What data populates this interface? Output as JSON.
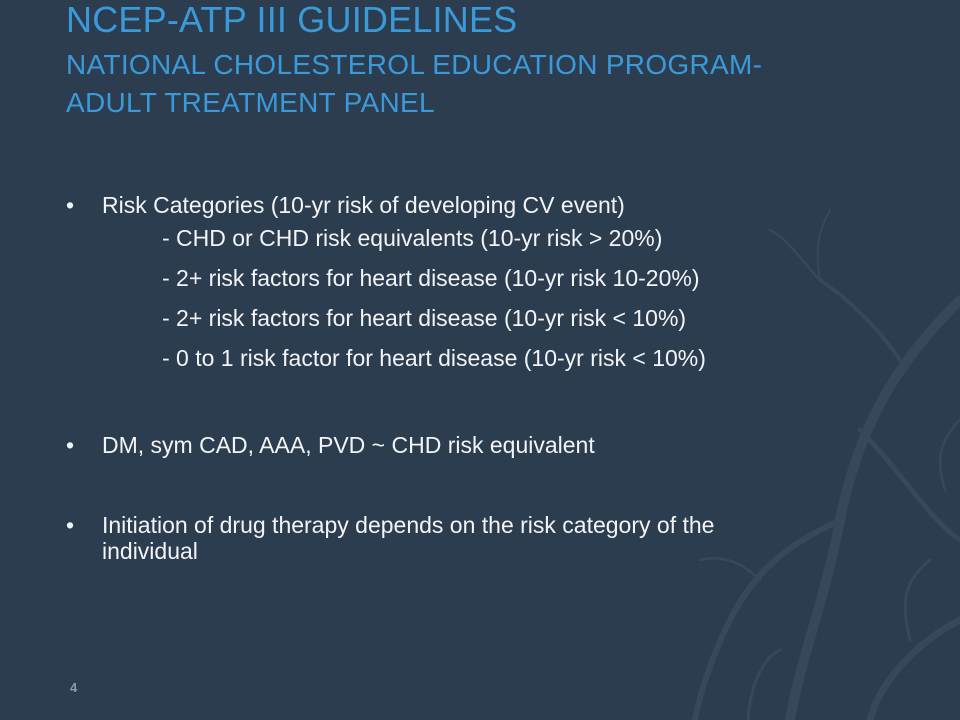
{
  "slide": {
    "title": "NCEP-ATP III GUIDELINES",
    "subtitle_lines": [
      "NATIONAL CHOLESTEROL EDUCATION PROGRAM-",
      "ADULT TREATMENT PANEL"
    ],
    "bullets": [
      {
        "text": "Risk Categories (10-yr risk of developing CV event)",
        "subitems": [
          "- CHD or CHD risk equivalents (10-yr risk > 20%)",
          "- 2+ risk factors for heart disease (10-yr risk 10-20%)",
          "- 2+ risk factors for heart disease (10-yr risk < 10%)",
          "- 0 to 1 risk factor for heart disease (10-yr risk < 10%)"
        ]
      },
      {
        "text": "DM, sym CAD, AAA, PVD ~ CHD risk equivalent"
      },
      {
        "text": "Initiation of drug therapy depends on the risk category of the individual"
      }
    ],
    "bullet_glyph": "•",
    "page_number": "4"
  },
  "colors": {
    "background": "#2d3d50",
    "title": "#3a9ad9",
    "body_text": "#f2f4f7",
    "page_number": "#8f9bab"
  }
}
